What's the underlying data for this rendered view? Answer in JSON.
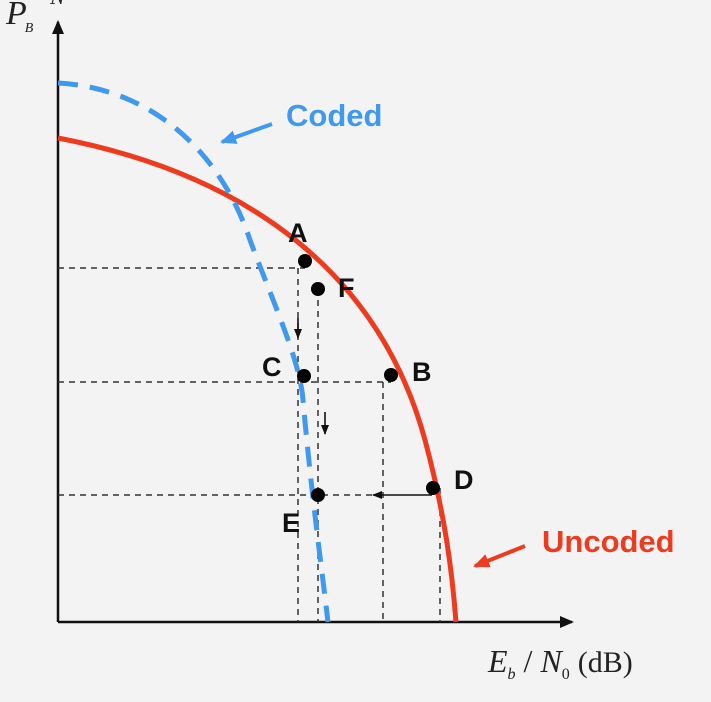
{
  "diagram": {
    "type": "coding-gain-tradeoff",
    "y_axis": {
      "symbol": "P",
      "subscript": "B",
      "partial": "N"
    },
    "x_axis": {
      "eb": "E",
      "eb_sub": "b",
      "slash": "/",
      "n0": "N",
      "n0_sub": "0",
      "unit": "(dB)"
    },
    "curves": {
      "coded": {
        "label": "Coded",
        "color": "#3f99ee"
      },
      "uncoded": {
        "label": "Uncoded",
        "color": "#ee3a1e"
      }
    },
    "points": {
      "A": "A",
      "B": "B",
      "C": "C",
      "D": "D",
      "E": "E",
      "F": "F"
    },
    "colors": {
      "axis": "#111111",
      "guide": "#333333",
      "point": "#000000"
    }
  }
}
